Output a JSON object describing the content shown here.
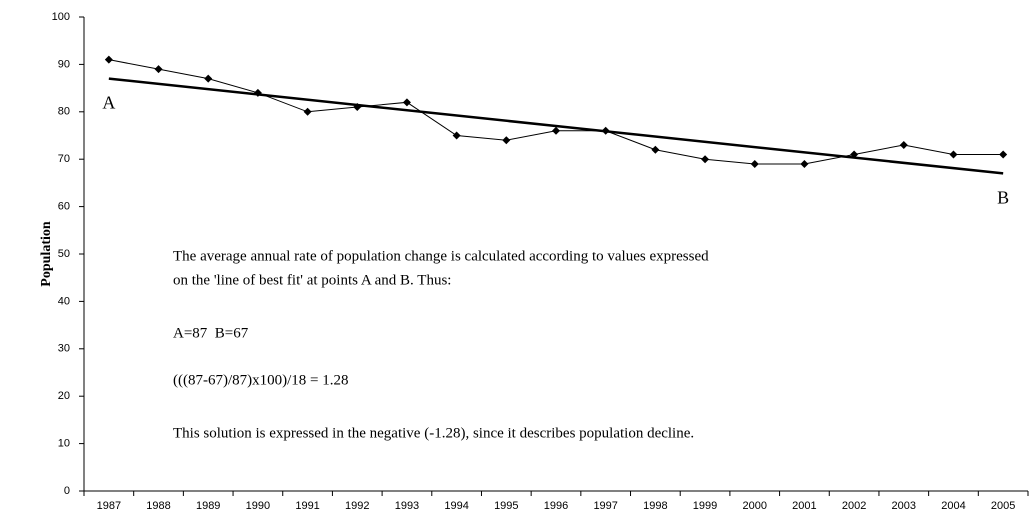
{
  "chart_data": {
    "type": "line",
    "y_label": "Population",
    "categories": [
      "1987",
      "1988",
      "1989",
      "1990",
      "1991",
      "1992",
      "1993",
      "1994",
      "1995",
      "1996",
      "1997",
      "1998",
      "1999",
      "2000",
      "2001",
      "2002",
      "2003",
      "2004",
      "2005"
    ],
    "series": [
      {
        "color": "#000000",
        "values": [
          91,
          89,
          87,
          84,
          80,
          81,
          82,
          75,
          74,
          76,
          76,
          72,
          70,
          69,
          69,
          71,
          73,
          71,
          71
        ]
      }
    ],
    "trend_line": {
      "from": 87,
      "to": 67,
      "color": "#000000"
    },
    "point_labels": {
      "start": "A",
      "end": "B"
    },
    "annotations": [
      "The average annual rate of population change is calculated according to values expressed",
      "on the 'line of best fit' at points A and B. Thus:",
      "A=87  B=67",
      "(((87-67)/87)x100)/18 = 1.28",
      "This solution is expressed in the negative (-1.28), since it describes population decline."
    ],
    "ylim": [
      0,
      100
    ],
    "yticks": [
      0,
      10,
      20,
      30,
      40,
      50,
      60,
      70,
      80,
      90,
      100
    ],
    "grid": false
  }
}
